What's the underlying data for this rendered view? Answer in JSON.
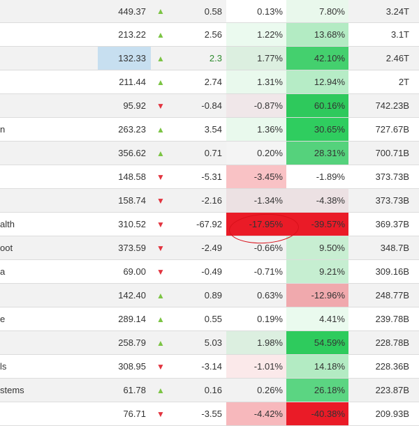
{
  "rows": [
    {
      "name": "",
      "price": "449.37",
      "dir": "up",
      "change": "0.58",
      "pct": "0.13%",
      "ytd": "7.80%",
      "cap": "3.24T",
      "pct_bg": "#ffffff",
      "ytd_bg": "#e9f8ec"
    },
    {
      "name": "",
      "price": "213.22",
      "dir": "up",
      "change": "2.56",
      "pct": "1.22%",
      "ytd": "13.68%",
      "cap": "3.1T",
      "pct_bg": "#ebfaef",
      "ytd_bg": "#b3ebc3"
    },
    {
      "name": "",
      "price": "132.33",
      "dir": "up",
      "change": "2.3",
      "pct": "1.77%",
      "ytd": "42.10%",
      "cap": "2.46T",
      "pct_bg": "#dcefe0",
      "ytd_bg": "#44d06e",
      "highlight_price": true,
      "green_change": true
    },
    {
      "name": "",
      "price": "211.44",
      "dir": "up",
      "change": "2.74",
      "pct": "1.31%",
      "ytd": "12.94%",
      "cap": "2T",
      "pct_bg": "#e9f9ed",
      "ytd_bg": "#b6ecc6"
    },
    {
      "name": "",
      "price": "95.92",
      "dir": "down",
      "change": "-0.84",
      "pct": "-0.87%",
      "ytd": "60.16%",
      "cap": "742.23B",
      "pct_bg": "#f0e7e9",
      "ytd_bg": "#2ec95c"
    },
    {
      "name": "n",
      "price": "263.23",
      "dir": "up",
      "change": "3.54",
      "pct": "1.36%",
      "ytd": "30.65%",
      "cap": "727.67B",
      "pct_bg": "#e9f9ed",
      "ytd_bg": "#2fcd5f"
    },
    {
      "name": "",
      "price": "356.62",
      "dir": "up",
      "change": "0.71",
      "pct": "0.20%",
      "ytd": "28.31%",
      "cap": "700.71B",
      "pct_bg": "#f4f4f4",
      "ytd_bg": "#55d27c"
    },
    {
      "name": "",
      "price": "148.58",
      "dir": "down",
      "change": "-5.31",
      "pct": "-3.45%",
      "ytd": "-1.89%",
      "cap": "373.73B",
      "pct_bg": "#f9c2c5",
      "ytd_bg": "#ffffff"
    },
    {
      "name": "",
      "price": "158.74",
      "dir": "down",
      "change": "-2.16",
      "pct": "-1.34%",
      "ytd": "-4.38%",
      "cap": "373.73B",
      "pct_bg": "#ece1e3",
      "ytd_bg": "#ece1e3"
    },
    {
      "name": "alth",
      "price": "310.52",
      "dir": "down",
      "change": "-67.92",
      "pct": "-17.95%",
      "ytd": "-39.57%",
      "cap": "369.37B",
      "pct_bg": "#ea1b27",
      "ytd_bg": "#ea1b27"
    },
    {
      "name": "oot",
      "price": "373.59",
      "dir": "down",
      "change": "-2.49",
      "pct": "-0.66%",
      "ytd": "9.50%",
      "cap": "348.7B",
      "pct_bg": "#f2f2f2",
      "ytd_bg": "#c8eed2"
    },
    {
      "name": "a",
      "price": "69.00",
      "dir": "down",
      "change": "-0.49",
      "pct": "-0.71%",
      "ytd": "9.21%",
      "cap": "309.16B",
      "pct_bg": "#ffffff",
      "ytd_bg": "#c6eed1"
    },
    {
      "name": "",
      "price": "142.40",
      "dir": "up",
      "change": "0.89",
      "pct": "0.63%",
      "ytd": "-12.96%",
      "cap": "248.77B",
      "pct_bg": "#f2f2f2",
      "ytd_bg": "#f0a9ad"
    },
    {
      "name": "e",
      "price": "289.14",
      "dir": "up",
      "change": "0.55",
      "pct": "0.19%",
      "ytd": "4.41%",
      "cap": "239.78B",
      "pct_bg": "#ffffff",
      "ytd_bg": "#eafaee"
    },
    {
      "name": "",
      "price": "258.79",
      "dir": "up",
      "change": "5.03",
      "pct": "1.98%",
      "ytd": "54.59%",
      "cap": "228.78B",
      "pct_bg": "#dcefe0",
      "ytd_bg": "#2ecb5d"
    },
    {
      "name": "ls",
      "price": "308.95",
      "dir": "down",
      "change": "-3.14",
      "pct": "-1.01%",
      "ytd": "14.18%",
      "cap": "228.36B",
      "pct_bg": "#fbe9ea",
      "ytd_bg": "#b3ebc3"
    },
    {
      "name": "stems",
      "price": "61.78",
      "dir": "up",
      "change": "0.16",
      "pct": "0.26%",
      "ytd": "26.18%",
      "cap": "223.87B",
      "pct_bg": "#f2f2f2",
      "ytd_bg": "#5bd582"
    },
    {
      "name": "",
      "price": "76.71",
      "dir": "down",
      "change": "-3.55",
      "pct": "-4.42%",
      "ytd": "-40.38%",
      "cap": "209.93B",
      "pct_bg": "#f7b8bc",
      "ytd_bg": "#ea1b27"
    }
  ],
  "annotation": {
    "shape": "red-ellipse",
    "color": "#d8101a"
  },
  "icons": {
    "up": "triangle-up-icon",
    "down": "triangle-down-icon"
  },
  "arrow_glyphs": {
    "up": "▲",
    "down": "▼"
  },
  "colors": {
    "up": "#7cc444",
    "down": "#e2343f"
  }
}
